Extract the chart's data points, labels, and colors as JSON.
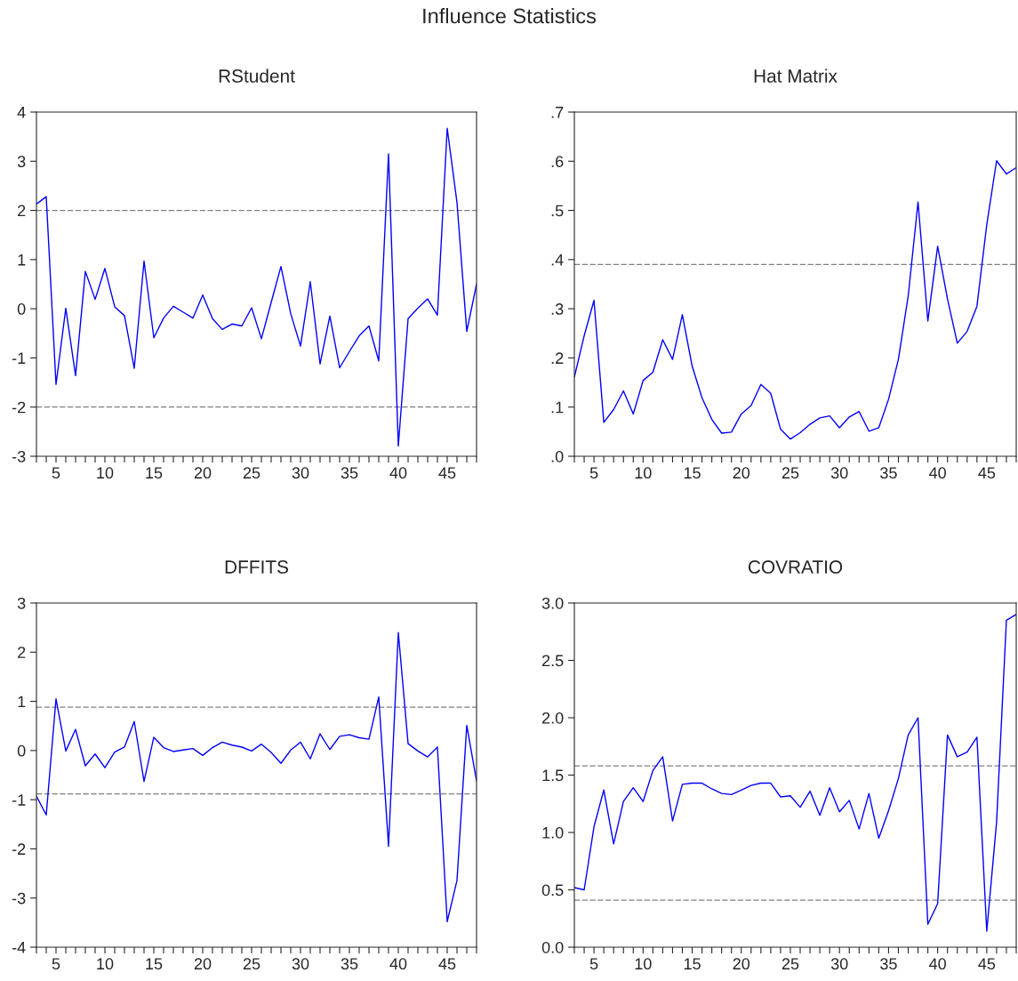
{
  "chart_data": [
    {
      "type": "line",
      "title": "RStudent",
      "annotations": [
        "Influence Statistics"
      ],
      "x": [
        3,
        4,
        5,
        6,
        7,
        8,
        9,
        10,
        11,
        12,
        13,
        14,
        15,
        16,
        17,
        18,
        19,
        20,
        21,
        22,
        23,
        24,
        25,
        26,
        27,
        28,
        29,
        30,
        31,
        32,
        33,
        34,
        35,
        36,
        37,
        38,
        39,
        40,
        41,
        42,
        43,
        44,
        45,
        46,
        47,
        48
      ],
      "series": [
        {
          "color": "#0000ff",
          "values": [
            2.13,
            2.28,
            -1.54,
            0.01,
            -1.36,
            0.76,
            0.19,
            0.82,
            0.04,
            -0.14,
            -1.21,
            0.97,
            -0.59,
            -0.19,
            0.05,
            -0.07,
            -0.19,
            0.28,
            -0.2,
            -0.42,
            -0.31,
            -0.35,
            0.02,
            -0.61,
            0.13,
            0.86,
            -0.1,
            -0.76,
            0.55,
            -1.12,
            -0.15,
            -1.2,
            -0.87,
            -0.55,
            -0.35,
            -1.06,
            3.15,
            -2.79,
            -0.2,
            0.01,
            0.2,
            -0.13,
            3.67,
            2.16,
            -0.46,
            0.5
          ]
        }
      ],
      "xlim": [
        3,
        48
      ],
      "ylim": [
        -3,
        4
      ],
      "yticks": [
        -3,
        -2,
        -1,
        0,
        1,
        2,
        3,
        4
      ],
      "xticks": [
        {
          "value": 3,
          "label": null
        },
        {
          "value": 4,
          "label": null
        },
        5,
        {
          "value": 6,
          "label": null
        },
        {
          "value": 7,
          "label": null
        },
        {
          "value": 8,
          "label": null
        },
        {
          "value": 9,
          "label": null
        },
        10,
        {
          "value": 11,
          "label": null
        },
        {
          "value": 12,
          "label": null
        },
        {
          "value": 13,
          "label": null
        },
        {
          "value": 14,
          "label": null
        },
        15,
        {
          "value": 16,
          "label": null
        },
        {
          "value": 17,
          "label": null
        },
        {
          "value": 18,
          "label": null
        },
        {
          "value": 19,
          "label": null
        },
        20,
        {
          "value": 21,
          "label": null
        },
        {
          "value": 22,
          "label": null
        },
        {
          "value": 23,
          "label": null
        },
        {
          "value": 24,
          "label": null
        },
        25,
        {
          "value": 26,
          "label": null
        },
        {
          "value": 27,
          "label": null
        },
        {
          "value": 28,
          "label": null
        },
        {
          "value": 29,
          "label": null
        },
        30,
        {
          "value": 31,
          "label": null
        },
        {
          "value": 32,
          "label": null
        },
        {
          "value": 33,
          "label": null
        },
        {
          "value": 34,
          "label": null
        },
        35,
        {
          "value": 36,
          "label": null
        },
        {
          "value": 37,
          "label": null
        },
        {
          "value": 38,
          "label": null
        },
        {
          "value": 39,
          "label": null
        },
        40,
        {
          "value": 41,
          "label": null
        },
        {
          "value": 42,
          "label": null
        },
        {
          "value": 43,
          "label": null
        },
        {
          "value": 44,
          "label": null
        },
        45,
        {
          "value": 46,
          "label": null
        },
        {
          "value": 47,
          "label": null
        },
        {
          "value": 48,
          "label": null
        }
      ],
      "ref_lines": [
        {
          "axis": "y",
          "value": 2,
          "color": "#808080",
          "line_style": "dashed"
        },
        {
          "axis": "y",
          "value": -2,
          "color": "#808080",
          "line_style": "dashed"
        }
      ],
      "grid": false,
      "legend": false,
      "line_style": "solid",
      "marker": "none"
    },
    {
      "type": "line",
      "title": "Hat Matrix",
      "x": [
        3,
        4,
        5,
        6,
        7,
        8,
        9,
        10,
        11,
        12,
        13,
        14,
        15,
        16,
        17,
        18,
        19,
        20,
        21,
        22,
        23,
        24,
        25,
        26,
        27,
        28,
        29,
        30,
        31,
        32,
        33,
        34,
        35,
        36,
        37,
        38,
        39,
        40,
        41,
        42,
        43,
        44,
        45,
        46,
        47,
        48
      ],
      "series": [
        {
          "color": "#0000ff",
          "values": [
            0.161,
            0.245,
            0.317,
            0.069,
            0.095,
            0.133,
            0.086,
            0.154,
            0.171,
            0.237,
            0.197,
            0.288,
            0.183,
            0.119,
            0.075,
            0.047,
            0.049,
            0.086,
            0.103,
            0.146,
            0.128,
            0.055,
            0.035,
            0.048,
            0.065,
            0.078,
            0.082,
            0.058,
            0.08,
            0.091,
            0.051,
            0.058,
            0.116,
            0.197,
            0.326,
            0.517,
            0.275,
            0.427,
            0.32,
            0.23,
            0.254,
            0.305,
            0.471,
            0.601,
            0.574,
            0.587
          ]
        }
      ],
      "xlim": [
        3,
        48
      ],
      "ylim": [
        0,
        0.7
      ],
      "yticks": [
        {
          "value": 0,
          "label": ".0"
        },
        {
          "value": 0.1,
          "label": ".1"
        },
        {
          "value": 0.2,
          "label": ".2"
        },
        {
          "value": 0.3,
          "label": ".3"
        },
        {
          "value": 0.4,
          "label": ".4"
        },
        {
          "value": 0.5,
          "label": ".5"
        },
        {
          "value": 0.6,
          "label": ".6"
        },
        {
          "value": 0.7,
          "label": ".7"
        }
      ],
      "xticks": [
        {
          "value": 3,
          "label": null
        },
        {
          "value": 4,
          "label": null
        },
        5,
        {
          "value": 6,
          "label": null
        },
        {
          "value": 7,
          "label": null
        },
        {
          "value": 8,
          "label": null
        },
        {
          "value": 9,
          "label": null
        },
        10,
        {
          "value": 11,
          "label": null
        },
        {
          "value": 12,
          "label": null
        },
        {
          "value": 13,
          "label": null
        },
        {
          "value": 14,
          "label": null
        },
        15,
        {
          "value": 16,
          "label": null
        },
        {
          "value": 17,
          "label": null
        },
        {
          "value": 18,
          "label": null
        },
        {
          "value": 19,
          "label": null
        },
        20,
        {
          "value": 21,
          "label": null
        },
        {
          "value": 22,
          "label": null
        },
        {
          "value": 23,
          "label": null
        },
        {
          "value": 24,
          "label": null
        },
        25,
        {
          "value": 26,
          "label": null
        },
        {
          "value": 27,
          "label": null
        },
        {
          "value": 28,
          "label": null
        },
        {
          "value": 29,
          "label": null
        },
        30,
        {
          "value": 31,
          "label": null
        },
        {
          "value": 32,
          "label": null
        },
        {
          "value": 33,
          "label": null
        },
        {
          "value": 34,
          "label": null
        },
        35,
        {
          "value": 36,
          "label": null
        },
        {
          "value": 37,
          "label": null
        },
        {
          "value": 38,
          "label": null
        },
        {
          "value": 39,
          "label": null
        },
        40,
        {
          "value": 41,
          "label": null
        },
        {
          "value": 42,
          "label": null
        },
        {
          "value": 43,
          "label": null
        },
        {
          "value": 44,
          "label": null
        },
        45,
        {
          "value": 46,
          "label": null
        },
        {
          "value": 47,
          "label": null
        },
        {
          "value": 48,
          "label": null
        }
      ],
      "ref_lines": [
        {
          "axis": "y",
          "value": 0.39,
          "color": "#808080",
          "line_style": "dashed"
        }
      ],
      "grid": false,
      "legend": false,
      "line_style": "solid",
      "marker": "none"
    },
    {
      "type": "line",
      "title": "DFFITS",
      "x": [
        3,
        4,
        5,
        6,
        7,
        8,
        9,
        10,
        11,
        12,
        13,
        14,
        15,
        16,
        17,
        18,
        19,
        20,
        21,
        22,
        23,
        24,
        25,
        26,
        27,
        28,
        29,
        30,
        31,
        32,
        33,
        34,
        35,
        36,
        37,
        38,
        39,
        40,
        41,
        42,
        43,
        44,
        45,
        46,
        47,
        48
      ],
      "series": [
        {
          "color": "#0000ff",
          "values": [
            -0.93,
            -1.31,
            1.05,
            -0.01,
            0.43,
            -0.31,
            -0.07,
            -0.35,
            -0.03,
            0.07,
            0.59,
            -0.63,
            0.27,
            0.06,
            -0.02,
            0.01,
            0.04,
            -0.1,
            0.06,
            0.17,
            0.11,
            0.07,
            -0.01,
            0.13,
            -0.04,
            -0.26,
            0.01,
            0.17,
            -0.17,
            0.34,
            0.02,
            0.29,
            0.32,
            0.26,
            0.23,
            1.09,
            -1.95,
            2.4,
            0.14,
            -0.01,
            -0.13,
            0.07,
            -3.48,
            -2.64,
            0.51,
            -0.62
          ]
        }
      ],
      "xlim": [
        3,
        48
      ],
      "ylim": [
        -4,
        3
      ],
      "yticks": [
        -4,
        -3,
        -2,
        -1,
        0,
        1,
        2,
        3
      ],
      "xticks": [
        {
          "value": 3,
          "label": null
        },
        {
          "value": 4,
          "label": null
        },
        5,
        {
          "value": 6,
          "label": null
        },
        {
          "value": 7,
          "label": null
        },
        {
          "value": 8,
          "label": null
        },
        {
          "value": 9,
          "label": null
        },
        10,
        {
          "value": 11,
          "label": null
        },
        {
          "value": 12,
          "label": null
        },
        {
          "value": 13,
          "label": null
        },
        {
          "value": 14,
          "label": null
        },
        15,
        {
          "value": 16,
          "label": null
        },
        {
          "value": 17,
          "label": null
        },
        {
          "value": 18,
          "label": null
        },
        {
          "value": 19,
          "label": null
        },
        20,
        {
          "value": 21,
          "label": null
        },
        {
          "value": 22,
          "label": null
        },
        {
          "value": 23,
          "label": null
        },
        {
          "value": 24,
          "label": null
        },
        25,
        {
          "value": 26,
          "label": null
        },
        {
          "value": 27,
          "label": null
        },
        {
          "value": 28,
          "label": null
        },
        {
          "value": 29,
          "label": null
        },
        30,
        {
          "value": 31,
          "label": null
        },
        {
          "value": 32,
          "label": null
        },
        {
          "value": 33,
          "label": null
        },
        {
          "value": 34,
          "label": null
        },
        35,
        {
          "value": 36,
          "label": null
        },
        {
          "value": 37,
          "label": null
        },
        {
          "value": 38,
          "label": null
        },
        {
          "value": 39,
          "label": null
        },
        40,
        {
          "value": 41,
          "label": null
        },
        {
          "value": 42,
          "label": null
        },
        {
          "value": 43,
          "label": null
        },
        {
          "value": 44,
          "label": null
        },
        45,
        {
          "value": 46,
          "label": null
        },
        {
          "value": 47,
          "label": null
        },
        {
          "value": 48,
          "label": null
        }
      ],
      "ref_lines": [
        {
          "axis": "y",
          "value": 0.88,
          "color": "#808080",
          "line_style": "dashed"
        },
        {
          "axis": "y",
          "value": -0.88,
          "color": "#808080",
          "line_style": "dashed"
        }
      ],
      "grid": false,
      "legend": false,
      "line_style": "solid",
      "marker": "none"
    },
    {
      "type": "line",
      "title": "COVRATIO",
      "x": [
        3,
        4,
        5,
        6,
        7,
        8,
        9,
        10,
        11,
        12,
        13,
        14,
        15,
        16,
        17,
        18,
        19,
        20,
        21,
        22,
        23,
        24,
        25,
        26,
        27,
        28,
        29,
        30,
        31,
        32,
        33,
        34,
        35,
        36,
        37,
        38,
        39,
        40,
        41,
        42,
        43,
        44,
        45,
        46,
        47,
        48
      ],
      "series": [
        {
          "color": "#0000ff",
          "values": [
            0.52,
            0.5,
            1.05,
            1.37,
            0.9,
            1.27,
            1.39,
            1.27,
            1.54,
            1.66,
            1.1,
            1.42,
            1.43,
            1.43,
            1.38,
            1.34,
            1.33,
            1.37,
            1.41,
            1.43,
            1.43,
            1.31,
            1.32,
            1.22,
            1.36,
            1.15,
            1.39,
            1.18,
            1.28,
            1.03,
            1.34,
            0.95,
            1.19,
            1.47,
            1.85,
            2.0,
            0.2,
            0.38,
            1.85,
            1.66,
            1.7,
            1.83,
            0.14,
            1.09,
            2.85,
            2.9
          ]
        }
      ],
      "xlim": [
        3,
        48
      ],
      "ylim": [
        0,
        3
      ],
      "yticks": [
        {
          "value": 0,
          "label": "0.0"
        },
        0.5,
        {
          "value": 1,
          "label": "1.0"
        },
        1.5,
        {
          "value": 2,
          "label": "2.0"
        },
        2.5,
        {
          "value": 3,
          "label": "3.0"
        }
      ],
      "xticks": [
        {
          "value": 3,
          "label": null
        },
        {
          "value": 4,
          "label": null
        },
        5,
        {
          "value": 6,
          "label": null
        },
        {
          "value": 7,
          "label": null
        },
        {
          "value": 8,
          "label": null
        },
        {
          "value": 9,
          "label": null
        },
        10,
        {
          "value": 11,
          "label": null
        },
        {
          "value": 12,
          "label": null
        },
        {
          "value": 13,
          "label": null
        },
        {
          "value": 14,
          "label": null
        },
        15,
        {
          "value": 16,
          "label": null
        },
        {
          "value": 17,
          "label": null
        },
        {
          "value": 18,
          "label": null
        },
        {
          "value": 19,
          "label": null
        },
        20,
        {
          "value": 21,
          "label": null
        },
        {
          "value": 22,
          "label": null
        },
        {
          "value": 23,
          "label": null
        },
        {
          "value": 24,
          "label": null
        },
        25,
        {
          "value": 26,
          "label": null
        },
        {
          "value": 27,
          "label": null
        },
        {
          "value": 28,
          "label": null
        },
        {
          "value": 29,
          "label": null
        },
        30,
        {
          "value": 31,
          "label": null
        },
        {
          "value": 32,
          "label": null
        },
        {
          "value": 33,
          "label": null
        },
        {
          "value": 34,
          "label": null
        },
        35,
        {
          "value": 36,
          "label": null
        },
        {
          "value": 37,
          "label": null
        },
        {
          "value": 38,
          "label": null
        },
        {
          "value": 39,
          "label": null
        },
        40,
        {
          "value": 41,
          "label": null
        },
        {
          "value": 42,
          "label": null
        },
        {
          "value": 43,
          "label": null
        },
        {
          "value": 44,
          "label": null
        },
        45,
        {
          "value": 46,
          "label": null
        },
        {
          "value": 47,
          "label": null
        },
        {
          "value": 48,
          "label": null
        }
      ],
      "ref_lines": [
        {
          "axis": "y",
          "value": 1.58,
          "color": "#808080",
          "line_style": "dashed"
        },
        {
          "axis": "y",
          "value": 0.41,
          "color": "#808080",
          "line_style": "dashed"
        }
      ],
      "grid": false,
      "legend": false,
      "line_style": "solid",
      "marker": "none"
    }
  ]
}
